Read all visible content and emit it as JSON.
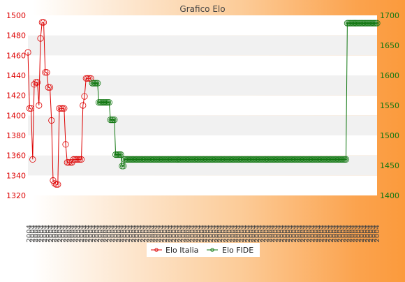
{
  "chart_data": {
    "type": "line",
    "title": "Grafico Elo",
    "x_tick_label": "2004",
    "x_tick_count": 114,
    "left_axis": {
      "ylim": [
        1320,
        1500
      ],
      "ticks": [
        "1320",
        "1340",
        "1360",
        "1380",
        "1400",
        "1420",
        "1440",
        "1460",
        "1480",
        "1500"
      ],
      "color": "#dd0000"
    },
    "right_axis": {
      "ylim": [
        1400,
        1700
      ],
      "ticks": [
        "1400",
        "1450",
        "1500",
        "1550",
        "1600",
        "1650",
        "1700"
      ],
      "color": "#117711"
    },
    "series": [
      {
        "name": "Elo Italia",
        "color": "#dd0000",
        "axis": "left",
        "values": [
          1463,
          1407,
          1407,
          1356,
          1431,
          1433,
          1433,
          1410,
          1477,
          1493,
          1493,
          1443,
          1443,
          1428,
          1428,
          1395,
          1335,
          1332,
          1331,
          1331,
          1407,
          1407,
          1407,
          1407,
          1371,
          1353,
          1353,
          1353,
          1353,
          1356,
          1356,
          1356,
          1356,
          1356,
          1356,
          1410,
          1419,
          1437,
          1437,
          1437,
          1437
        ]
      },
      {
        "name": "Elo FIDE",
        "color": "#117711",
        "axis": "right",
        "start_index": 40,
        "values": [
          1587,
          1587,
          1587,
          1587,
          1587,
          1555,
          1555,
          1555,
          1555,
          1555,
          1555,
          1555,
          1555,
          1555,
          1526,
          1526,
          1526,
          1526,
          1468,
          1468,
          1468,
          1468,
          1468,
          1449,
          1449,
          1460,
          1460,
          1460,
          1460,
          1460,
          1460,
          1460,
          1460,
          1460,
          1460,
          1460,
          1460,
          1460,
          1460,
          1460,
          1460,
          1460,
          1460,
          1460,
          1460,
          1460,
          1460,
          1460,
          1460,
          1460,
          1460,
          1460,
          1460,
          1460,
          1460,
          1460,
          1460,
          1460,
          1460,
          1460,
          1460,
          1460,
          1460,
          1460,
          1460,
          1460,
          1460,
          1460,
          1460,
          1460,
          1460,
          1460,
          1460,
          1460,
          1460,
          1460,
          1460,
          1460,
          1460,
          1460,
          1460,
          1460,
          1460,
          1460,
          1460,
          1460,
          1460,
          1460,
          1460,
          1460,
          1460,
          1460,
          1460,
          1460,
          1460,
          1460,
          1460,
          1460,
          1460,
          1460,
          1460,
          1460,
          1460,
          1460,
          1460,
          1460,
          1460,
          1460,
          1460,
          1460,
          1460,
          1460,
          1460,
          1460,
          1460,
          1460,
          1460,
          1460,
          1460,
          1460,
          1460,
          1460,
          1460,
          1460,
          1460,
          1460,
          1460,
          1460,
          1460,
          1460,
          1460,
          1460,
          1460,
          1460,
          1460,
          1460,
          1460,
          1460,
          1460,
          1460,
          1460,
          1460,
          1460,
          1460,
          1460,
          1460,
          1460,
          1460,
          1460,
          1460,
          1460,
          1460,
          1460,
          1460,
          1460,
          1460,
          1460,
          1460,
          1460,
          1460,
          1460,
          1460,
          1460,
          1460,
          1460,
          1460,
          1460,
          1460,
          1460,
          1460,
          1460,
          1460,
          1460,
          1460,
          1460,
          1460,
          1460,
          1460,
          1460,
          1460,
          1460,
          1460,
          1460,
          1460,
          1460,
          1460,
          1460,
          1460,
          1460,
          1460,
          1460,
          1460,
          1460,
          1460,
          1460,
          1460,
          1460,
          1687,
          1687,
          1687,
          1687,
          1687,
          1687,
          1687,
          1687,
          1687,
          1687,
          1687,
          1687,
          1687,
          1687,
          1687,
          1687,
          1687,
          1687,
          1687,
          1687,
          1687,
          1687,
          1687,
          1687
        ]
      }
    ],
    "grid": true,
    "band_colors": [
      "#ffffff",
      "#f1f1f1"
    ],
    "legend_position": "bottom-center"
  }
}
